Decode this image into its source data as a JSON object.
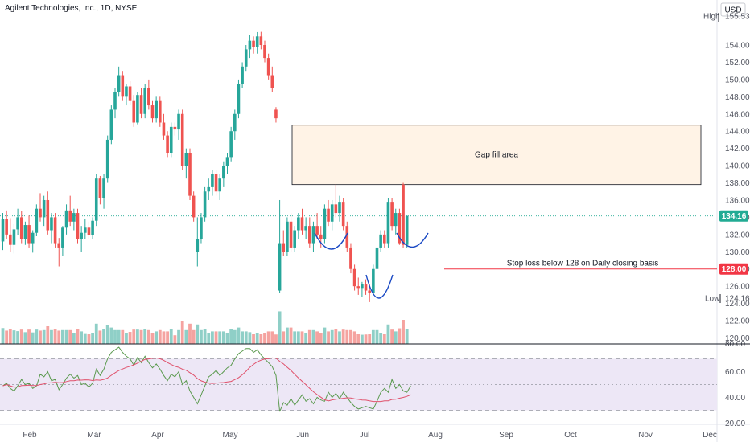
{
  "header": {
    "title": "Agilent Technologies, Inc., 1D, NYSE",
    "currency": "USD"
  },
  "colors": {
    "up": "#26a69a",
    "down": "#ef5350",
    "vol_up": "#8fcfc7",
    "vol_down": "#f5a3a0",
    "rsi_line": "#5b9a4f",
    "rsi_ma": "#e0516b",
    "rsi_band": "#ede7f6",
    "gap_fill": "#fff3e6",
    "last_price": "#22ab94",
    "stop_line": "#f23645",
    "pattern": "#1a49c4"
  },
  "price_axis": {
    "ticks": [
      "154.00",
      "152.00",
      "150.00",
      "148.00",
      "146.00",
      "144.00",
      "142.00",
      "140.00",
      "138.00",
      "136.00",
      "134.00",
      "132.00",
      "130.00",
      "128.00",
      "126.00",
      "124.00",
      "122.00",
      "120.00"
    ],
    "high_label": "High",
    "high_value": "155.53",
    "low_label": "Low",
    "low_value": "124.16",
    "last_price": "134.16",
    "stop_price": "128.00",
    "cut_label": "80.00"
  },
  "rsi_axis": {
    "ticks": [
      "60.00",
      "40.00",
      "20.00"
    ]
  },
  "time_axis": {
    "labels": [
      "Feb",
      "Mar",
      "Apr",
      "May",
      "Jun",
      "Jul",
      "Aug",
      "Sep",
      "Oct",
      "Nov",
      "Dec"
    ]
  },
  "annotations": {
    "gap_fill_label": "Gap fill area",
    "stop_loss_label": "Stop loss below 128 on Daily closing basis"
  },
  "chart_data": {
    "type": "candlestick",
    "title": "Agilent Technologies, Inc., 1D, NYSE",
    "y_range": [
      119,
      156.5
    ],
    "high": 155.53,
    "low": 124.16,
    "last_close": 134.16,
    "gap_fill_zone": [
      137.8,
      144.7
    ],
    "stop_loss": 128.0,
    "candles": [
      {
        "o": 131.2,
        "h": 134.5,
        "l": 130.2,
        "c": 133.8
      },
      {
        "o": 133.8,
        "h": 134.8,
        "l": 131.5,
        "c": 132.0
      },
      {
        "o": 132.0,
        "h": 133.9,
        "l": 130.0,
        "c": 130.8
      },
      {
        "o": 130.8,
        "h": 133.2,
        "l": 129.8,
        "c": 132.6
      },
      {
        "o": 132.6,
        "h": 135.0,
        "l": 131.9,
        "c": 134.0
      },
      {
        "o": 134.0,
        "h": 134.7,
        "l": 131.0,
        "c": 131.5
      },
      {
        "o": 131.5,
        "h": 133.5,
        "l": 130.8,
        "c": 133.1
      },
      {
        "o": 133.1,
        "h": 134.2,
        "l": 130.5,
        "c": 131.0
      },
      {
        "o": 131.0,
        "h": 132.5,
        "l": 129.9,
        "c": 132.2
      },
      {
        "o": 132.2,
        "h": 135.5,
        "l": 131.8,
        "c": 135.0
      },
      {
        "o": 135.0,
        "h": 136.8,
        "l": 133.5,
        "c": 134.0
      },
      {
        "o": 134.0,
        "h": 136.5,
        "l": 133.0,
        "c": 136.0
      },
      {
        "o": 136.0,
        "h": 137.0,
        "l": 132.0,
        "c": 132.5
      },
      {
        "o": 132.5,
        "h": 134.5,
        "l": 131.0,
        "c": 134.0
      },
      {
        "o": 134.0,
        "h": 134.5,
        "l": 130.5,
        "c": 131.0
      },
      {
        "o": 131.0,
        "h": 131.6,
        "l": 128.3,
        "c": 130.5
      },
      {
        "o": 130.5,
        "h": 133.0,
        "l": 129.5,
        "c": 132.8
      },
      {
        "o": 132.8,
        "h": 135.5,
        "l": 132.0,
        "c": 134.8
      },
      {
        "o": 134.8,
        "h": 136.5,
        "l": 133.0,
        "c": 133.5
      },
      {
        "o": 133.5,
        "h": 135.0,
        "l": 132.5,
        "c": 134.5
      },
      {
        "o": 134.5,
        "h": 135.0,
        "l": 131.0,
        "c": 131.5
      },
      {
        "o": 131.5,
        "h": 133.0,
        "l": 130.0,
        "c": 132.2
      },
      {
        "o": 132.2,
        "h": 133.8,
        "l": 131.5,
        "c": 132.8
      },
      {
        "o": 132.8,
        "h": 133.5,
        "l": 131.5,
        "c": 131.9
      },
      {
        "o": 131.9,
        "h": 134.0,
        "l": 131.5,
        "c": 133.6
      },
      {
        "o": 133.6,
        "h": 139.0,
        "l": 133.0,
        "c": 138.5
      },
      {
        "o": 138.5,
        "h": 138.8,
        "l": 135.5,
        "c": 136.2
      },
      {
        "o": 136.2,
        "h": 139.0,
        "l": 135.0,
        "c": 138.5
      },
      {
        "o": 138.5,
        "h": 143.5,
        "l": 138.0,
        "c": 143.0
      },
      {
        "o": 143.0,
        "h": 147.0,
        "l": 142.5,
        "c": 146.5
      },
      {
        "o": 146.5,
        "h": 149.0,
        "l": 145.5,
        "c": 148.5
      },
      {
        "o": 148.5,
        "h": 151.5,
        "l": 148.0,
        "c": 150.5
      },
      {
        "o": 150.5,
        "h": 151.0,
        "l": 147.5,
        "c": 148.0
      },
      {
        "o": 148.0,
        "h": 149.5,
        "l": 147.0,
        "c": 149.2
      },
      {
        "o": 149.2,
        "h": 149.8,
        "l": 147.0,
        "c": 147.5
      },
      {
        "o": 147.5,
        "h": 148.2,
        "l": 144.5,
        "c": 145.0
      },
      {
        "o": 145.0,
        "h": 148.5,
        "l": 144.8,
        "c": 148.2
      },
      {
        "o": 148.2,
        "h": 149.0,
        "l": 145.5,
        "c": 146.0
      },
      {
        "o": 146.0,
        "h": 149.5,
        "l": 145.5,
        "c": 149.0
      },
      {
        "o": 149.0,
        "h": 150.0,
        "l": 146.5,
        "c": 147.0
      },
      {
        "o": 147.0,
        "h": 147.5,
        "l": 145.0,
        "c": 145.5
      },
      {
        "o": 145.5,
        "h": 148.0,
        "l": 145.0,
        "c": 147.5
      },
      {
        "o": 147.5,
        "h": 148.0,
        "l": 144.5,
        "c": 145.0
      },
      {
        "o": 145.0,
        "h": 146.0,
        "l": 143.0,
        "c": 143.5
      },
      {
        "o": 143.5,
        "h": 144.0,
        "l": 141.0,
        "c": 141.5
      },
      {
        "o": 141.5,
        "h": 145.0,
        "l": 141.0,
        "c": 144.5
      },
      {
        "o": 144.5,
        "h": 145.0,
        "l": 143.5,
        "c": 144.2
      },
      {
        "o": 144.2,
        "h": 146.5,
        "l": 143.0,
        "c": 146.0
      },
      {
        "o": 146.0,
        "h": 146.5,
        "l": 139.5,
        "c": 140.0
      },
      {
        "o": 140.0,
        "h": 142.0,
        "l": 138.5,
        "c": 141.5
      },
      {
        "o": 141.5,
        "h": 142.0,
        "l": 136.0,
        "c": 136.5
      },
      {
        "o": 136.5,
        "h": 137.0,
        "l": 133.5,
        "c": 134.0
      },
      {
        "o": 130.0,
        "h": 134.0,
        "l": 128.3,
        "c": 131.5
      },
      {
        "o": 131.5,
        "h": 134.5,
        "l": 131.0,
        "c": 134.0
      },
      {
        "o": 134.0,
        "h": 137.5,
        "l": 133.5,
        "c": 137.0
      },
      {
        "o": 137.0,
        "h": 138.5,
        "l": 136.0,
        "c": 137.5
      },
      {
        "o": 137.5,
        "h": 139.5,
        "l": 136.5,
        "c": 139.0
      },
      {
        "o": 139.0,
        "h": 139.5,
        "l": 136.5,
        "c": 137.0
      },
      {
        "o": 137.0,
        "h": 139.0,
        "l": 136.0,
        "c": 138.5
      },
      {
        "o": 138.5,
        "h": 140.5,
        "l": 137.5,
        "c": 140.0
      },
      {
        "o": 140.0,
        "h": 141.5,
        "l": 139.0,
        "c": 141.0
      },
      {
        "o": 141.0,
        "h": 144.5,
        "l": 140.5,
        "c": 144.0
      },
      {
        "o": 144.0,
        "h": 146.5,
        "l": 143.0,
        "c": 146.0
      },
      {
        "o": 146.0,
        "h": 150.0,
        "l": 145.5,
        "c": 149.5
      },
      {
        "o": 149.5,
        "h": 152.0,
        "l": 149.0,
        "c": 151.5
      },
      {
        "o": 151.5,
        "h": 154.0,
        "l": 151.0,
        "c": 153.5
      },
      {
        "o": 153.5,
        "h": 155.2,
        "l": 152.5,
        "c": 154.5
      },
      {
        "o": 154.5,
        "h": 155.0,
        "l": 153.0,
        "c": 153.8
      },
      {
        "o": 153.8,
        "h": 155.5,
        "l": 153.0,
        "c": 155.0
      },
      {
        "o": 155.0,
        "h": 155.53,
        "l": 153.5,
        "c": 154.0
      },
      {
        "o": 154.0,
        "h": 154.5,
        "l": 152.0,
        "c": 152.5
      },
      {
        "o": 152.5,
        "h": 153.0,
        "l": 150.0,
        "c": 150.5
      },
      {
        "o": 150.5,
        "h": 151.5,
        "l": 148.5,
        "c": 149.0
      },
      {
        "o": 146.5,
        "h": 146.8,
        "l": 145.0,
        "c": 145.5
      },
      {
        "o": 125.5,
        "h": 136.0,
        "l": 125.2,
        "c": 131.0
      },
      {
        "o": 131.0,
        "h": 132.5,
        "l": 129.5,
        "c": 130.0
      },
      {
        "o": 130.0,
        "h": 134.0,
        "l": 129.5,
        "c": 133.5
      },
      {
        "o": 133.5,
        "h": 134.5,
        "l": 130.0,
        "c": 130.5
      },
      {
        "o": 130.5,
        "h": 133.0,
        "l": 130.0,
        "c": 132.5
      },
      {
        "o": 132.5,
        "h": 134.5,
        "l": 131.5,
        "c": 134.0
      },
      {
        "o": 134.0,
        "h": 135.0,
        "l": 132.0,
        "c": 132.5
      },
      {
        "o": 132.5,
        "h": 134.0,
        "l": 131.5,
        "c": 133.0
      },
      {
        "o": 133.0,
        "h": 134.0,
        "l": 130.5,
        "c": 131.0
      },
      {
        "o": 131.0,
        "h": 133.5,
        "l": 130.0,
        "c": 133.0
      },
      {
        "o": 133.0,
        "h": 134.5,
        "l": 131.5,
        "c": 132.0
      },
      {
        "o": 132.0,
        "h": 133.0,
        "l": 130.5,
        "c": 131.5
      },
      {
        "o": 131.5,
        "h": 135.5,
        "l": 131.0,
        "c": 135.0
      },
      {
        "o": 135.0,
        "h": 136.0,
        "l": 133.0,
        "c": 133.5
      },
      {
        "o": 133.5,
        "h": 136.0,
        "l": 132.5,
        "c": 135.5
      },
      {
        "o": 135.5,
        "h": 137.8,
        "l": 134.0,
        "c": 134.5
      },
      {
        "o": 134.5,
        "h": 136.5,
        "l": 133.5,
        "c": 135.8
      },
      {
        "o": 135.8,
        "h": 136.2,
        "l": 132.5,
        "c": 133.0
      },
      {
        "o": 133.0,
        "h": 133.5,
        "l": 130.0,
        "c": 130.5
      },
      {
        "o": 130.5,
        "h": 131.0,
        "l": 127.5,
        "c": 128.0
      },
      {
        "o": 128.0,
        "h": 128.5,
        "l": 125.5,
        "c": 126.0
      },
      {
        "o": 126.0,
        "h": 127.0,
        "l": 125.0,
        "c": 125.8
      },
      {
        "o": 125.8,
        "h": 126.5,
        "l": 124.8,
        "c": 126.2
      },
      {
        "o": 126.2,
        "h": 126.8,
        "l": 125.0,
        "c": 125.5
      },
      {
        "o": 125.5,
        "h": 126.3,
        "l": 124.16,
        "c": 125.2
      },
      {
        "o": 125.2,
        "h": 128.5,
        "l": 125.0,
        "c": 128.0
      },
      {
        "o": 128.0,
        "h": 131.0,
        "l": 127.5,
        "c": 130.5
      },
      {
        "o": 130.5,
        "h": 132.5,
        "l": 130.0,
        "c": 132.0
      },
      {
        "o": 132.0,
        "h": 132.5,
        "l": 130.5,
        "c": 131.0
      },
      {
        "o": 131.0,
        "h": 136.2,
        "l": 130.5,
        "c": 135.8
      },
      {
        "o": 135.8,
        "h": 136.2,
        "l": 132.5,
        "c": 133.0
      },
      {
        "o": 133.0,
        "h": 135.0,
        "l": 132.0,
        "c": 134.5
      },
      {
        "o": 134.5,
        "h": 135.0,
        "l": 130.8,
        "c": 131.0
      },
      {
        "o": 137.8,
        "h": 138.0,
        "l": 130.5,
        "c": 130.8
      },
      {
        "o": 130.8,
        "h": 134.3,
        "l": 130.5,
        "c": 134.16
      }
    ],
    "rsi": [
      49,
      51,
      47,
      45,
      49,
      54,
      50,
      51,
      47,
      49,
      58,
      56,
      60,
      53,
      54,
      46,
      50,
      55,
      58,
      55,
      57,
      50,
      51,
      48,
      51,
      62,
      57,
      62,
      70,
      75,
      77,
      79,
      75,
      72,
      70,
      65,
      71,
      67,
      72,
      67,
      63,
      66,
      62,
      57,
      53,
      58,
      56,
      60,
      50,
      53,
      45,
      40,
      35,
      42,
      49,
      56,
      58,
      61,
      57,
      60,
      63,
      65,
      70,
      74,
      76,
      78,
      78,
      75,
      77,
      73,
      70,
      67,
      64,
      57,
      29,
      36,
      34,
      39,
      34,
      38,
      42,
      37,
      39,
      35,
      40,
      38,
      37,
      44,
      40,
      43,
      39,
      44,
      40,
      36,
      33,
      31,
      32,
      33,
      32,
      31,
      37,
      44,
      47,
      44,
      54,
      47,
      50,
      45,
      44,
      49
    ]
  }
}
